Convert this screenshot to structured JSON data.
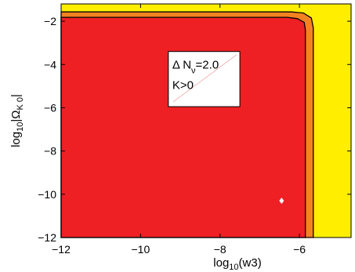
{
  "chart_data": {
    "type": "contour",
    "xlabel": {
      "prefix": "log",
      "sub": "10",
      "body": "(w3)"
    },
    "ylabel": {
      "prefix": "log",
      "sub": "10",
      "body_open": "|Ω",
      "body_sub": "K 0",
      "body_close": "|"
    },
    "xlim": [
      -12,
      -4.7
    ],
    "ylim": [
      -12,
      -1.2
    ],
    "xticks": [
      -12,
      -10,
      -8,
      -6
    ],
    "yticks": [
      -12,
      -10,
      -8,
      -6,
      -4,
      -2
    ],
    "xtick_labels": [
      "−12",
      "−10",
      "−8",
      "−6"
    ],
    "ytick_labels": [
      "−12",
      "−10",
      "−8",
      "−6",
      "−4",
      "−2"
    ],
    "regions": [
      {
        "color": "#ee2024",
        "boundary": [
          [
            -12,
            -12
          ],
          [
            -5.85,
            -12
          ],
          [
            -5.85,
            -2.4
          ],
          [
            -5.88,
            -2.05
          ],
          [
            -6.05,
            -1.88
          ],
          [
            -6.3,
            -1.82
          ],
          [
            -12,
            -1.82
          ]
        ]
      },
      {
        "color": "#f58220",
        "boundary": [
          [
            -12,
            -12
          ],
          [
            -5.65,
            -12
          ],
          [
            -5.65,
            -2.3
          ],
          [
            -5.7,
            -1.85
          ],
          [
            -5.9,
            -1.62
          ],
          [
            -6.2,
            -1.57
          ],
          [
            -12,
            -1.57
          ]
        ]
      },
      {
        "color": "#ffee00",
        "boundary": "background"
      }
    ],
    "marker": {
      "x": -6.45,
      "y": -10.3,
      "shape": "diamond",
      "color": "#ffffff"
    },
    "annotation": {
      "line1": "Δ N",
      "line1_sub": "ν",
      "line1_rest": "=2.0",
      "line2": "K>0",
      "x_range": [
        -9.3,
        -7.5
      ],
      "y_range": [
        -5.95,
        -3.4
      ]
    }
  }
}
